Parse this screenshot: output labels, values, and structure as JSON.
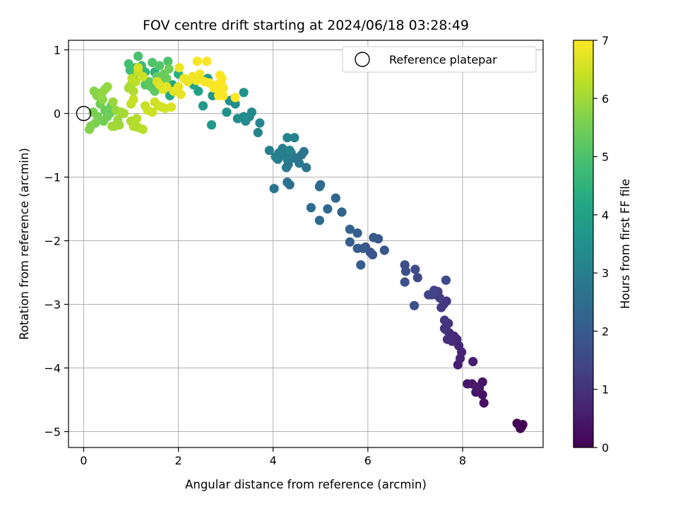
{
  "chart_data": {
    "type": "scatter",
    "title": "FOV centre drift starting at 2024/06/18 03:28:49",
    "xlabel": "Angular distance from reference (arcmin)",
    "ylabel": "Rotation from reference (arcmin)",
    "xlim": [
      -0.32,
      9.7
    ],
    "ylim": [
      -5.25,
      1.15
    ],
    "xticks": [
      0,
      2,
      4,
      6,
      8
    ],
    "yticks": [
      1,
      0,
      -1,
      -2,
      -3,
      -4,
      -5
    ],
    "xtick_labels": [
      "0",
      "2",
      "4",
      "6",
      "8"
    ],
    "ytick_labels": [
      "1",
      "0",
      "−1",
      "−2",
      "−3",
      "−4",
      "−5"
    ],
    "grid": true,
    "colormap": "viridis",
    "colorbar": {
      "label": "Hours from first FF file",
      "range": [
        0,
        7
      ],
      "ticks": [
        0,
        1,
        2,
        3,
        4,
        5,
        6,
        7
      ],
      "tick_labels": [
        "0",
        "1",
        "2",
        "3",
        "4",
        "5",
        "6",
        "7"
      ]
    },
    "legend": {
      "placement": "top-right",
      "entries": [
        {
          "label": "Reference platepar",
          "marker": "open-circle"
        }
      ]
    },
    "reference_point": {
      "x": 0,
      "y": 0
    },
    "points": [
      [
        9.15,
        -4.87,
        0.05
      ],
      [
        9.25,
        -4.92,
        0.05
      ],
      [
        9.22,
        -4.95,
        0.05
      ],
      [
        9.27,
        -4.89,
        0.06
      ],
      [
        8.45,
        -4.55,
        0.3
      ],
      [
        8.42,
        -4.42,
        0.35
      ],
      [
        8.35,
        -4.32,
        0.4
      ],
      [
        8.28,
        -4.38,
        0.4
      ],
      [
        8.42,
        -4.22,
        0.4
      ],
      [
        8.2,
        -4.25,
        0.45
      ],
      [
        8.1,
        -4.25,
        0.45
      ],
      [
        8.3,
        -4.3,
        0.5
      ],
      [
        8.22,
        -3.9,
        0.55
      ],
      [
        7.9,
        -3.95,
        0.6
      ],
      [
        7.95,
        -3.85,
        0.65
      ],
      [
        7.98,
        -3.75,
        0.7
      ],
      [
        7.92,
        -3.65,
        0.75
      ],
      [
        7.88,
        -3.55,
        0.8
      ],
      [
        7.82,
        -3.5,
        0.85
      ],
      [
        7.78,
        -3.58,
        0.85
      ],
      [
        7.72,
        -3.45,
        0.9
      ],
      [
        7.68,
        -3.55,
        0.95
      ],
      [
        7.65,
        -3.4,
        1.0
      ],
      [
        7.62,
        -3.38,
        1.0
      ],
      [
        7.7,
        -3.3,
        1.05
      ],
      [
        7.62,
        -3.25,
        1.1
      ],
      [
        7.66,
        -2.95,
        1.1
      ],
      [
        7.6,
        -3.0,
        1.15
      ],
      [
        7.55,
        -3.05,
        1.2
      ],
      [
        7.52,
        -2.9,
        1.25
      ],
      [
        7.45,
        -2.85,
        1.3
      ],
      [
        7.48,
        -2.8,
        1.3
      ],
      [
        7.4,
        -2.78,
        1.35
      ],
      [
        7.35,
        -2.85,
        1.4
      ],
      [
        7.28,
        -2.85,
        1.45
      ],
      [
        7.65,
        -2.62,
        1.5
      ],
      [
        7.05,
        -2.58,
        1.55
      ],
      [
        7.0,
        -2.45,
        1.6
      ],
      [
        6.78,
        -2.38,
        1.65
      ],
      [
        6.8,
        -2.48,
        1.65
      ],
      [
        6.78,
        -2.65,
        1.7
      ],
      [
        6.98,
        -3.02,
        1.7
      ],
      [
        5.95,
        -2.1,
        1.75
      ],
      [
        6.1,
        -2.22,
        1.8
      ],
      [
        6.05,
        -2.18,
        1.85
      ],
      [
        6.35,
        -2.15,
        1.9
      ],
      [
        6.22,
        -1.97,
        1.9
      ],
      [
        6.12,
        -1.95,
        1.95
      ],
      [
        5.9,
        -2.12,
        2.0
      ],
      [
        5.78,
        -2.12,
        2.0
      ],
      [
        5.62,
        -2.02,
        2.05
      ],
      [
        5.85,
        -2.38,
        2.05
      ],
      [
        5.78,
        -1.88,
        2.1
      ],
      [
        5.62,
        -1.82,
        2.15
      ],
      [
        5.45,
        -1.55,
        2.25
      ],
      [
        5.32,
        -1.33,
        2.3
      ],
      [
        5.15,
        -1.5,
        2.35
      ],
      [
        4.98,
        -1.68,
        2.4
      ],
      [
        4.8,
        -1.48,
        2.45
      ],
      [
        5.0,
        -1.12,
        2.5
      ],
      [
        4.98,
        -1.15,
        2.5
      ],
      [
        4.35,
        -1.12,
        2.55
      ],
      [
        4.3,
        -1.08,
        2.6
      ],
      [
        4.02,
        -1.18,
        2.65
      ],
      [
        4.7,
        -0.85,
        2.65
      ],
      [
        4.6,
        -0.65,
        2.7
      ],
      [
        4.65,
        -0.6,
        2.75
      ],
      [
        4.5,
        -0.7,
        2.75
      ],
      [
        4.55,
        -0.78,
        2.8
      ],
      [
        4.42,
        -0.7,
        2.8
      ],
      [
        4.38,
        -0.62,
        2.85
      ],
      [
        4.32,
        -0.8,
        2.85
      ],
      [
        4.28,
        -0.85,
        2.85
      ],
      [
        4.3,
        -0.72,
        2.9
      ],
      [
        4.22,
        -0.65,
        2.9
      ],
      [
        4.2,
        -0.55,
        2.95
      ],
      [
        4.12,
        -0.62,
        3.0
      ],
      [
        4.1,
        -0.72,
        3.0
      ],
      [
        4.05,
        -0.68,
        3.05
      ],
      [
        3.92,
        -0.58,
        3.05
      ],
      [
        4.45,
        -0.38,
        3.1
      ],
      [
        4.3,
        -0.38,
        3.1
      ],
      [
        4.35,
        -0.58,
        3.15
      ],
      [
        3.72,
        -0.15,
        3.2
      ],
      [
        3.68,
        -0.3,
        3.2
      ],
      [
        3.55,
        0.02,
        3.25
      ],
      [
        3.5,
        -0.05,
        3.3
      ],
      [
        3.42,
        -0.12,
        3.3
      ],
      [
        3.38,
        -0.05,
        3.35
      ],
      [
        3.25,
        -0.08,
        3.35
      ],
      [
        3.2,
        0.15,
        3.4
      ],
      [
        3.15,
        0.22,
        3.4
      ],
      [
        3.08,
        0.2,
        3.45
      ],
      [
        3.02,
        0.02,
        3.5
      ],
      [
        3.38,
        0.33,
        3.55
      ],
      [
        2.82,
        0.3,
        3.6
      ],
      [
        2.72,
        0.28,
        3.65
      ],
      [
        2.52,
        0.12,
        3.7
      ],
      [
        2.7,
        -0.18,
        3.75
      ],
      [
        2.62,
        0.55,
        3.85
      ],
      [
        2.42,
        0.35,
        3.95
      ],
      [
        2.32,
        0.45,
        4.05
      ],
      [
        1.88,
        0.45,
        4.15
      ],
      [
        1.82,
        0.28,
        4.25
      ],
      [
        2.0,
        0.62,
        4.35
      ],
      [
        1.5,
        0.65,
        4.45
      ],
      [
        1.3,
        0.65,
        4.6
      ],
      [
        1.22,
        0.75,
        4.7
      ],
      [
        1.1,
        0.72,
        4.75
      ],
      [
        1.05,
        0.6,
        4.8
      ],
      [
        0.98,
        0.68,
        4.85
      ],
      [
        0.95,
        0.78,
        4.9
      ],
      [
        1.15,
        0.9,
        4.95
      ],
      [
        1.78,
        0.82,
        5.0
      ],
      [
        1.45,
        0.8,
        5.05
      ],
      [
        1.6,
        0.75,
        5.1
      ],
      [
        1.3,
        0.45,
        5.15
      ],
      [
        1.38,
        0.5,
        5.2
      ],
      [
        1.42,
        0.42,
        5.2
      ],
      [
        1.5,
        0.35,
        5.25
      ],
      [
        1.55,
        0.58,
        5.3
      ],
      [
        1.65,
        0.48,
        5.3
      ],
      [
        1.7,
        0.62,
        5.35
      ],
      [
        1.75,
        0.55,
        5.4
      ],
      [
        1.8,
        0.7,
        5.45
      ],
      [
        0.65,
        0.05,
        5.3
      ],
      [
        0.55,
        0.0,
        5.3
      ],
      [
        0.58,
        0.12,
        5.35
      ],
      [
        0.45,
        0.05,
        5.4
      ],
      [
        0.5,
        -0.05,
        5.45
      ],
      [
        0.42,
        -0.12,
        5.5
      ],
      [
        0.35,
        0.15,
        5.5
      ],
      [
        0.3,
        -0.05,
        5.55
      ],
      [
        0.25,
        -0.15,
        5.6
      ],
      [
        0.2,
        0.02,
        5.6
      ],
      [
        0.15,
        -0.2,
        5.65
      ],
      [
        0.12,
        -0.25,
        5.7
      ],
      [
        0.28,
        0.28,
        5.7
      ],
      [
        0.22,
        0.35,
        5.75
      ],
      [
        0.35,
        0.32,
        5.75
      ],
      [
        0.4,
        0.22,
        5.8
      ],
      [
        0.45,
        0.38,
        5.8
      ],
      [
        0.5,
        0.42,
        5.85
      ],
      [
        0.38,
        0.3,
        5.85
      ],
      [
        0.62,
        0.18,
        5.9
      ],
      [
        0.68,
        0.05,
        5.9
      ],
      [
        0.72,
        -0.1,
        5.95
      ],
      [
        0.75,
        -0.18,
        5.95
      ],
      [
        0.6,
        -0.2,
        6.0
      ],
      [
        0.65,
        -0.2,
        6.0
      ],
      [
        0.8,
        0.02,
        6.05
      ],
      [
        0.85,
        0.0,
        6.05
      ],
      [
        0.95,
        0.4,
        6.1
      ],
      [
        1.0,
        0.45,
        6.1
      ],
      [
        1.05,
        0.35,
        6.15
      ],
      [
        1.0,
        -0.12,
        6.15
      ],
      [
        1.05,
        -0.2,
        6.2
      ],
      [
        1.15,
        -0.22,
        6.2
      ],
      [
        1.25,
        -0.25,
        6.25
      ],
      [
        1.12,
        -0.08,
        6.25
      ],
      [
        1.02,
        0.55,
        6.3
      ],
      [
        1.1,
        0.5,
        6.3
      ],
      [
        1.15,
        0.65,
        6.35
      ],
      [
        1.0,
        0.15,
        6.35
      ],
      [
        1.05,
        0.22,
        6.4
      ],
      [
        1.3,
        0.12,
        6.4
      ],
      [
        1.35,
        0.05,
        6.45
      ],
      [
        1.45,
        0.02,
        6.45
      ],
      [
        1.5,
        0.18,
        6.5
      ],
      [
        1.58,
        0.12,
        6.5
      ],
      [
        1.65,
        0.1,
        6.55
      ],
      [
        1.72,
        0.08,
        6.55
      ],
      [
        1.85,
        0.1,
        6.6
      ],
      [
        1.55,
        0.5,
        6.6
      ],
      [
        1.6,
        0.45,
        6.65
      ],
      [
        1.68,
        0.38,
        6.65
      ],
      [
        1.75,
        0.42,
        6.7
      ],
      [
        1.9,
        0.35,
        6.7
      ],
      [
        2.0,
        0.42,
        6.75
      ],
      [
        2.05,
        0.3,
        6.75
      ],
      [
        2.12,
        0.55,
        6.8
      ],
      [
        2.2,
        0.5,
        6.8
      ],
      [
        2.3,
        0.58,
        6.85
      ],
      [
        2.38,
        0.52,
        6.85
      ],
      [
        2.45,
        0.62,
        6.9
      ],
      [
        2.55,
        0.5,
        6.9
      ],
      [
        2.65,
        0.48,
        6.92
      ],
      [
        2.75,
        0.4,
        6.93
      ],
      [
        2.82,
        0.45,
        6.95
      ],
      [
        2.88,
        0.35,
        6.96
      ],
      [
        2.92,
        0.55,
        6.97
      ],
      [
        2.95,
        0.4,
        6.98
      ],
      [
        2.85,
        0.28,
        6.99
      ],
      [
        2.9,
        0.5,
        7.0
      ],
      [
        2.95,
        0.28,
        7.0
      ],
      [
        2.88,
        0.6,
        7.0
      ],
      [
        3.2,
        0.25,
        6.98
      ],
      [
        2.4,
        0.82,
        6.9
      ],
      [
        2.6,
        0.82,
        6.92
      ],
      [
        2.02,
        0.72,
        6.8
      ],
      [
        1.15,
        0.72,
        6.55
      ],
      [
        1.25,
        0.58,
        6.45
      ]
    ]
  }
}
